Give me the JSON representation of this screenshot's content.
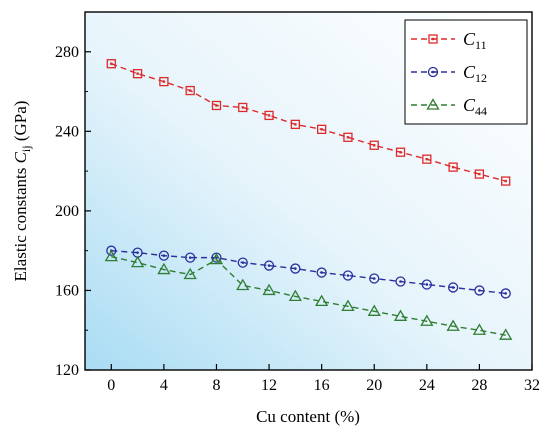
{
  "chart_data": {
    "type": "line",
    "xlabel": "Cu content (%)",
    "ylabel": {
      "prefix": "Elastic constants ",
      "symbol": "C",
      "sub": "ij",
      "unit": " (GPa)"
    },
    "xlim": [
      -2,
      32
    ],
    "ylim": [
      120,
      300
    ],
    "xticks": [
      0,
      4,
      8,
      12,
      16,
      20,
      24,
      28,
      32
    ],
    "yticks": [
      120,
      160,
      200,
      240,
      280
    ],
    "x": [
      0,
      2,
      4,
      6,
      8,
      10,
      12,
      14,
      16,
      18,
      20,
      22,
      24,
      26,
      28,
      30
    ],
    "series": [
      {
        "name": "C11",
        "symbol": "C",
        "sub": "11",
        "color": "#dd2a2a",
        "marker": "square",
        "values": [
          274,
          269,
          265,
          260.5,
          253,
          252,
          248,
          243.5,
          241,
          237,
          233,
          229.5,
          226,
          222,
          218.5,
          215
        ]
      },
      {
        "name": "C12",
        "symbol": "C",
        "sub": "12",
        "color": "#2b2f9e",
        "marker": "circle",
        "values": [
          180,
          179,
          177.5,
          176.5,
          176.5,
          174,
          172.5,
          171,
          169,
          167.5,
          166,
          164.5,
          163,
          161.5,
          160,
          158.5
        ]
      },
      {
        "name": "C44",
        "symbol": "C",
        "sub": "44",
        "color": "#2e7d32",
        "marker": "triangle",
        "values": [
          177,
          174,
          170.5,
          168,
          175.5,
          162.5,
          160,
          157,
          154.5,
          152,
          149.5,
          147,
          144.5,
          142,
          140,
          137.5
        ]
      }
    ],
    "legend_position": "top-right",
    "grid": false,
    "background": "gradient light-blue (bottom-left) to white (top-right)"
  }
}
